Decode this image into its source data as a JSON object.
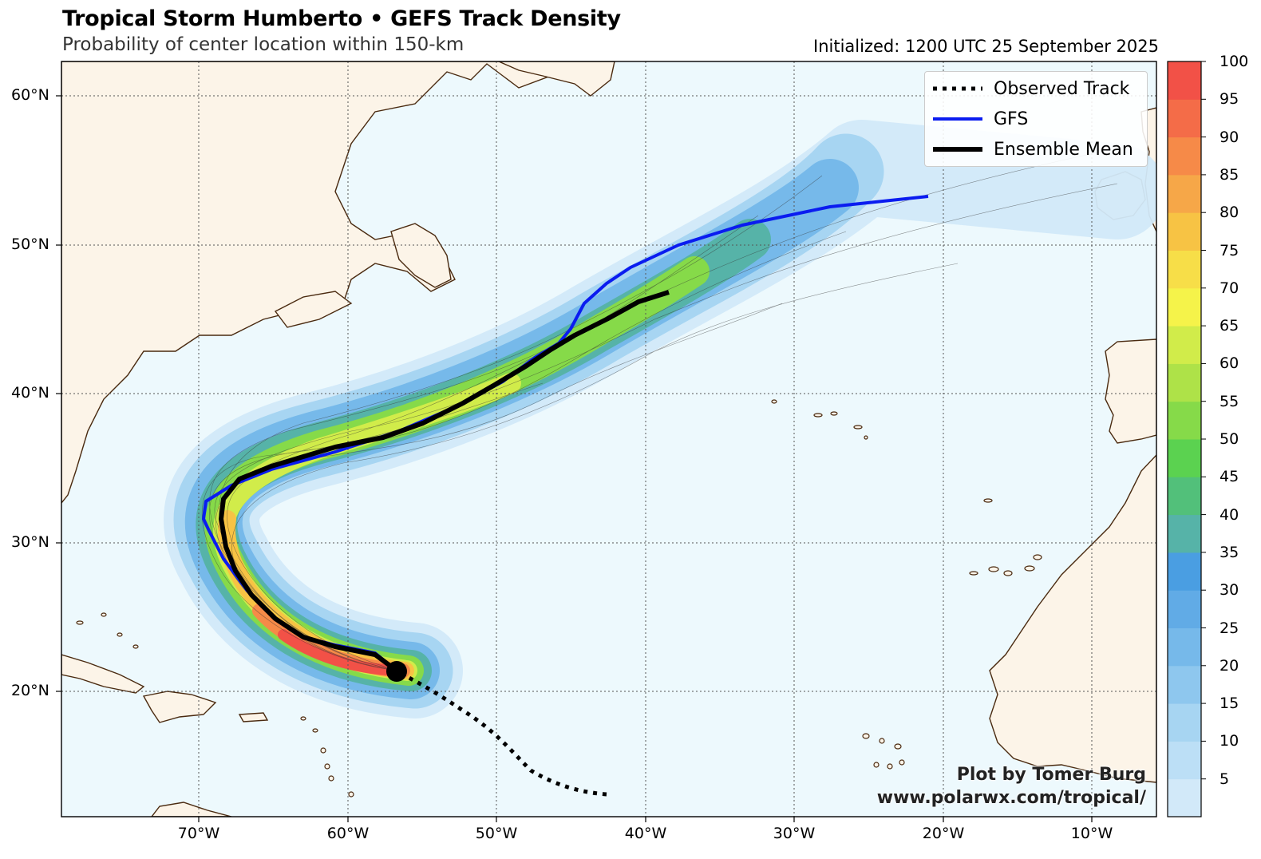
{
  "title": "Tropical Storm Humberto • GEFS Track Density",
  "subtitle": "Probability of center location within 150-km",
  "initialized": "Initialized: 1200 UTC 25 September 2025",
  "latitude_labels": [
    "60°N",
    "50°N",
    "40°N",
    "30°N",
    "20°N"
  ],
  "longitude_labels": [
    "70°W",
    "60°W",
    "50°W",
    "40°W",
    "30°W",
    "20°W",
    "10°W"
  ],
  "legend": {
    "observed": "Observed Track",
    "gfs": "GFS",
    "mean": "Ensemble Mean"
  },
  "colorbar": {
    "ticks": [
      "5",
      "10",
      "15",
      "20",
      "25",
      "30",
      "35",
      "40",
      "45",
      "50",
      "55",
      "60",
      "65",
      "70",
      "75",
      "80",
      "85",
      "90",
      "95",
      "100"
    ],
    "colors": [
      "#d2e9f9",
      "#bcdff6",
      "#a7d5f2",
      "#8ec7ee",
      "#76b9ea",
      "#61abe6",
      "#4a9ee2",
      "#56b3a8",
      "#52c07a",
      "#5bd250",
      "#86da49",
      "#aee248",
      "#d1ec4a",
      "#f5f34a",
      "#f7de48",
      "#f7c344",
      "#f6a748",
      "#f68a48",
      "#f46c48",
      "#f25147"
    ]
  },
  "credit": {
    "line1": "Plot by Tomer Burg",
    "line2": "www.polarwx.com/tropical/"
  },
  "colors": {
    "ocean": "#edf9fd",
    "land": "#fcf4e8",
    "coast": "#4a2a10",
    "gfs": "#0a1cf0",
    "mean": "#000000"
  }
}
